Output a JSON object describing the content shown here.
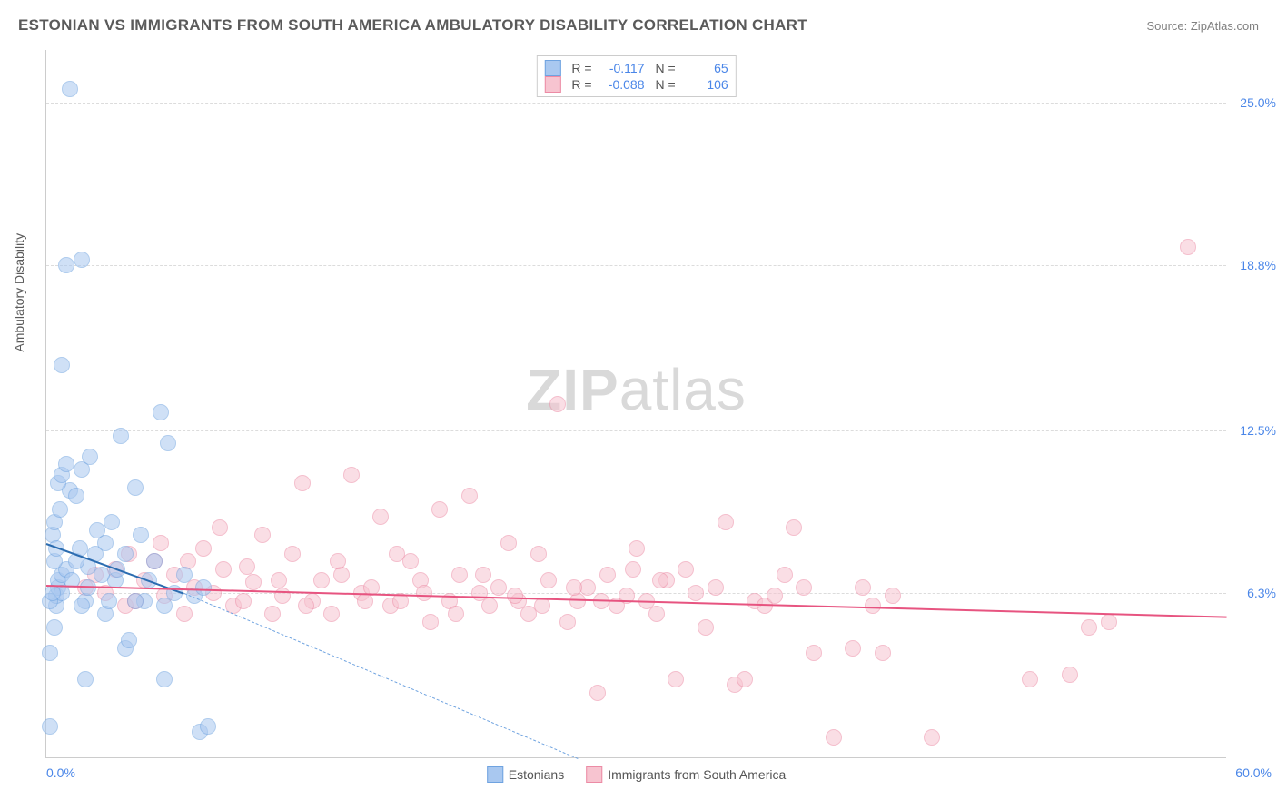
{
  "header": {
    "title": "ESTONIAN VS IMMIGRANTS FROM SOUTH AMERICA AMBULATORY DISABILITY CORRELATION CHART",
    "source": "Source: ZipAtlas.com"
  },
  "watermark": {
    "zip": "ZIP",
    "atlas": "atlas"
  },
  "chart": {
    "type": "scatter",
    "background_color": "#ffffff",
    "grid_color": "#dcdcdc",
    "border_color": "#cccccc",
    "ylabel": "Ambulatory Disability",
    "label_color": "#5a5a5a",
    "tick_color": "#4a86e8",
    "xlim": [
      0,
      60
    ],
    "ylim": [
      0,
      27
    ],
    "yticks": [
      {
        "value": 6.3,
        "label": "6.3%"
      },
      {
        "value": 12.5,
        "label": "12.5%"
      },
      {
        "value": 18.8,
        "label": "18.8%"
      },
      {
        "value": 25.0,
        "label": "25.0%"
      }
    ],
    "xtick_left": "0.0%",
    "xtick_right": "60.0%",
    "marker_radius": 9,
    "marker_opacity": 0.55,
    "line_width_solid": 2.5,
    "line_width_dash": 1.2
  },
  "series": {
    "estonians": {
      "label": "Estonians",
      "color_fill": "#a9c8f0",
      "color_stroke": "#6fa3e0",
      "line_color": "#2b6cb0",
      "R": "-0.117",
      "N": "65",
      "regression": {
        "x1": 0,
        "y1": 8.2,
        "x2": 7.0,
        "y2": 6.3,
        "dash_ext_x": 27,
        "dash_ext_y": 0
      },
      "points": [
        [
          0.2,
          1.2
        ],
        [
          0.2,
          4.0
        ],
        [
          0.4,
          5.0
        ],
        [
          0.5,
          5.8
        ],
        [
          0.5,
          6.2
        ],
        [
          0.6,
          6.5
        ],
        [
          0.6,
          6.8
        ],
        [
          0.8,
          6.3
        ],
        [
          0.8,
          7.0
        ],
        [
          1.0,
          7.2
        ],
        [
          0.3,
          8.5
        ],
        [
          0.4,
          9.0
        ],
        [
          0.7,
          9.5
        ],
        [
          1.2,
          10.2
        ],
        [
          1.5,
          10.0
        ],
        [
          2.0,
          3.0
        ],
        [
          2.0,
          6.0
        ],
        [
          2.1,
          6.5
        ],
        [
          2.1,
          7.3
        ],
        [
          2.5,
          7.8
        ],
        [
          2.6,
          8.7
        ],
        [
          3.0,
          5.5
        ],
        [
          3.2,
          6.0
        ],
        [
          3.5,
          6.8
        ],
        [
          3.6,
          7.2
        ],
        [
          4.0,
          7.8
        ],
        [
          4.0,
          4.2
        ],
        [
          4.2,
          4.5
        ],
        [
          4.5,
          10.3
        ],
        [
          5.0,
          6.0
        ],
        [
          5.2,
          6.8
        ],
        [
          5.5,
          7.5
        ],
        [
          6.0,
          3.0
        ],
        [
          6.0,
          5.8
        ],
        [
          6.5,
          6.3
        ],
        [
          7.0,
          7.0
        ],
        [
          7.5,
          6.2
        ],
        [
          8.0,
          6.5
        ],
        [
          1.8,
          11.0
        ],
        [
          2.2,
          11.5
        ],
        [
          3.8,
          12.3
        ],
        [
          1.0,
          18.8
        ],
        [
          1.8,
          19.0
        ],
        [
          0.8,
          15.0
        ],
        [
          1.2,
          25.5
        ],
        [
          5.8,
          13.2
        ],
        [
          6.2,
          12.0
        ],
        [
          0.2,
          6.0
        ],
        [
          0.3,
          6.3
        ],
        [
          0.4,
          7.5
        ],
        [
          0.5,
          8.0
        ],
        [
          0.6,
          10.5
        ],
        [
          0.8,
          10.8
        ],
        [
          1.0,
          11.2
        ],
        [
          1.3,
          6.8
        ],
        [
          1.5,
          7.5
        ],
        [
          1.7,
          8.0
        ],
        [
          1.8,
          5.8
        ],
        [
          2.8,
          7.0
        ],
        [
          3.0,
          8.2
        ],
        [
          3.3,
          9.0
        ],
        [
          4.5,
          6.0
        ],
        [
          4.8,
          8.5
        ],
        [
          7.8,
          1.0
        ],
        [
          8.2,
          1.2
        ]
      ]
    },
    "immigrants": {
      "label": "Immigrants from South America",
      "color_fill": "#f7c4d0",
      "color_stroke": "#ec8ba5",
      "line_color": "#e75480",
      "R": "-0.088",
      "N": "106",
      "regression": {
        "x1": 0,
        "y1": 6.6,
        "x2": 60,
        "y2": 5.4
      },
      "points": [
        [
          2.0,
          6.5
        ],
        [
          2.5,
          7.0
        ],
        [
          3.0,
          6.3
        ],
        [
          3.5,
          7.2
        ],
        [
          4.0,
          5.8
        ],
        [
          4.5,
          6.0
        ],
        [
          5.0,
          6.8
        ],
        [
          5.5,
          7.5
        ],
        [
          6.0,
          6.2
        ],
        [
          6.5,
          7.0
        ],
        [
          7.0,
          5.5
        ],
        [
          7.5,
          6.5
        ],
        [
          8.0,
          8.0
        ],
        [
          8.5,
          6.3
        ],
        [
          9.0,
          7.2
        ],
        [
          9.5,
          5.8
        ],
        [
          10.0,
          6.0
        ],
        [
          10.5,
          6.7
        ],
        [
          11.0,
          8.5
        ],
        [
          11.5,
          5.5
        ],
        [
          12.0,
          6.2
        ],
        [
          12.5,
          7.8
        ],
        [
          13.0,
          10.5
        ],
        [
          13.5,
          6.0
        ],
        [
          14.0,
          6.8
        ],
        [
          14.5,
          5.5
        ],
        [
          15.0,
          7.0
        ],
        [
          15.5,
          10.8
        ],
        [
          16.0,
          6.3
        ],
        [
          16.5,
          6.5
        ],
        [
          17.0,
          9.2
        ],
        [
          17.5,
          5.8
        ],
        [
          18.0,
          6.0
        ],
        [
          18.5,
          7.5
        ],
        [
          19.0,
          6.8
        ],
        [
          19.5,
          5.2
        ],
        [
          20.0,
          9.5
        ],
        [
          20.5,
          6.0
        ],
        [
          21.0,
          7.0
        ],
        [
          21.5,
          10.0
        ],
        [
          22.0,
          6.3
        ],
        [
          22.5,
          5.8
        ],
        [
          23.0,
          6.5
        ],
        [
          23.5,
          8.2
        ],
        [
          24.0,
          6.0
        ],
        [
          24.5,
          5.5
        ],
        [
          25.0,
          7.8
        ],
        [
          25.5,
          6.8
        ],
        [
          26.0,
          13.5
        ],
        [
          26.5,
          5.2
        ],
        [
          27.0,
          6.0
        ],
        [
          27.5,
          6.5
        ],
        [
          28.0,
          2.5
        ],
        [
          28.5,
          7.0
        ],
        [
          29.0,
          5.8
        ],
        [
          29.5,
          6.2
        ],
        [
          30.0,
          8.0
        ],
        [
          30.5,
          6.0
        ],
        [
          31.0,
          5.5
        ],
        [
          31.5,
          6.8
        ],
        [
          32.0,
          3.0
        ],
        [
          32.5,
          7.2
        ],
        [
          33.0,
          6.3
        ],
        [
          33.5,
          5.0
        ],
        [
          34.0,
          6.5
        ],
        [
          34.5,
          9.0
        ],
        [
          35.0,
          2.8
        ],
        [
          35.5,
          3.0
        ],
        [
          36.0,
          6.0
        ],
        [
          36.5,
          5.8
        ],
        [
          37.0,
          6.2
        ],
        [
          37.5,
          7.0
        ],
        [
          38.0,
          8.8
        ],
        [
          38.5,
          6.5
        ],
        [
          39.0,
          4.0
        ],
        [
          40.0,
          0.8
        ],
        [
          41.0,
          4.2
        ],
        [
          41.5,
          6.5
        ],
        [
          42.0,
          5.8
        ],
        [
          42.5,
          4.0
        ],
        [
          43.0,
          6.2
        ],
        [
          45.0,
          0.8
        ],
        [
          50.0,
          3.0
        ],
        [
          52.0,
          3.2
        ],
        [
          53.0,
          5.0
        ],
        [
          54.0,
          5.2
        ],
        [
          58.0,
          19.5
        ],
        [
          4.2,
          7.8
        ],
        [
          5.8,
          8.2
        ],
        [
          7.2,
          7.5
        ],
        [
          8.8,
          8.8
        ],
        [
          10.2,
          7.3
        ],
        [
          11.8,
          6.8
        ],
        [
          13.2,
          5.8
        ],
        [
          14.8,
          7.5
        ],
        [
          16.2,
          6.0
        ],
        [
          17.8,
          7.8
        ],
        [
          19.2,
          6.3
        ],
        [
          20.8,
          5.5
        ],
        [
          22.2,
          7.0
        ],
        [
          23.8,
          6.2
        ],
        [
          25.2,
          5.8
        ],
        [
          26.8,
          6.5
        ],
        [
          28.2,
          6.0
        ],
        [
          29.8,
          7.2
        ],
        [
          31.2,
          6.8
        ]
      ]
    }
  },
  "legend_labels": {
    "R_label": "R =",
    "N_label": "N ="
  }
}
